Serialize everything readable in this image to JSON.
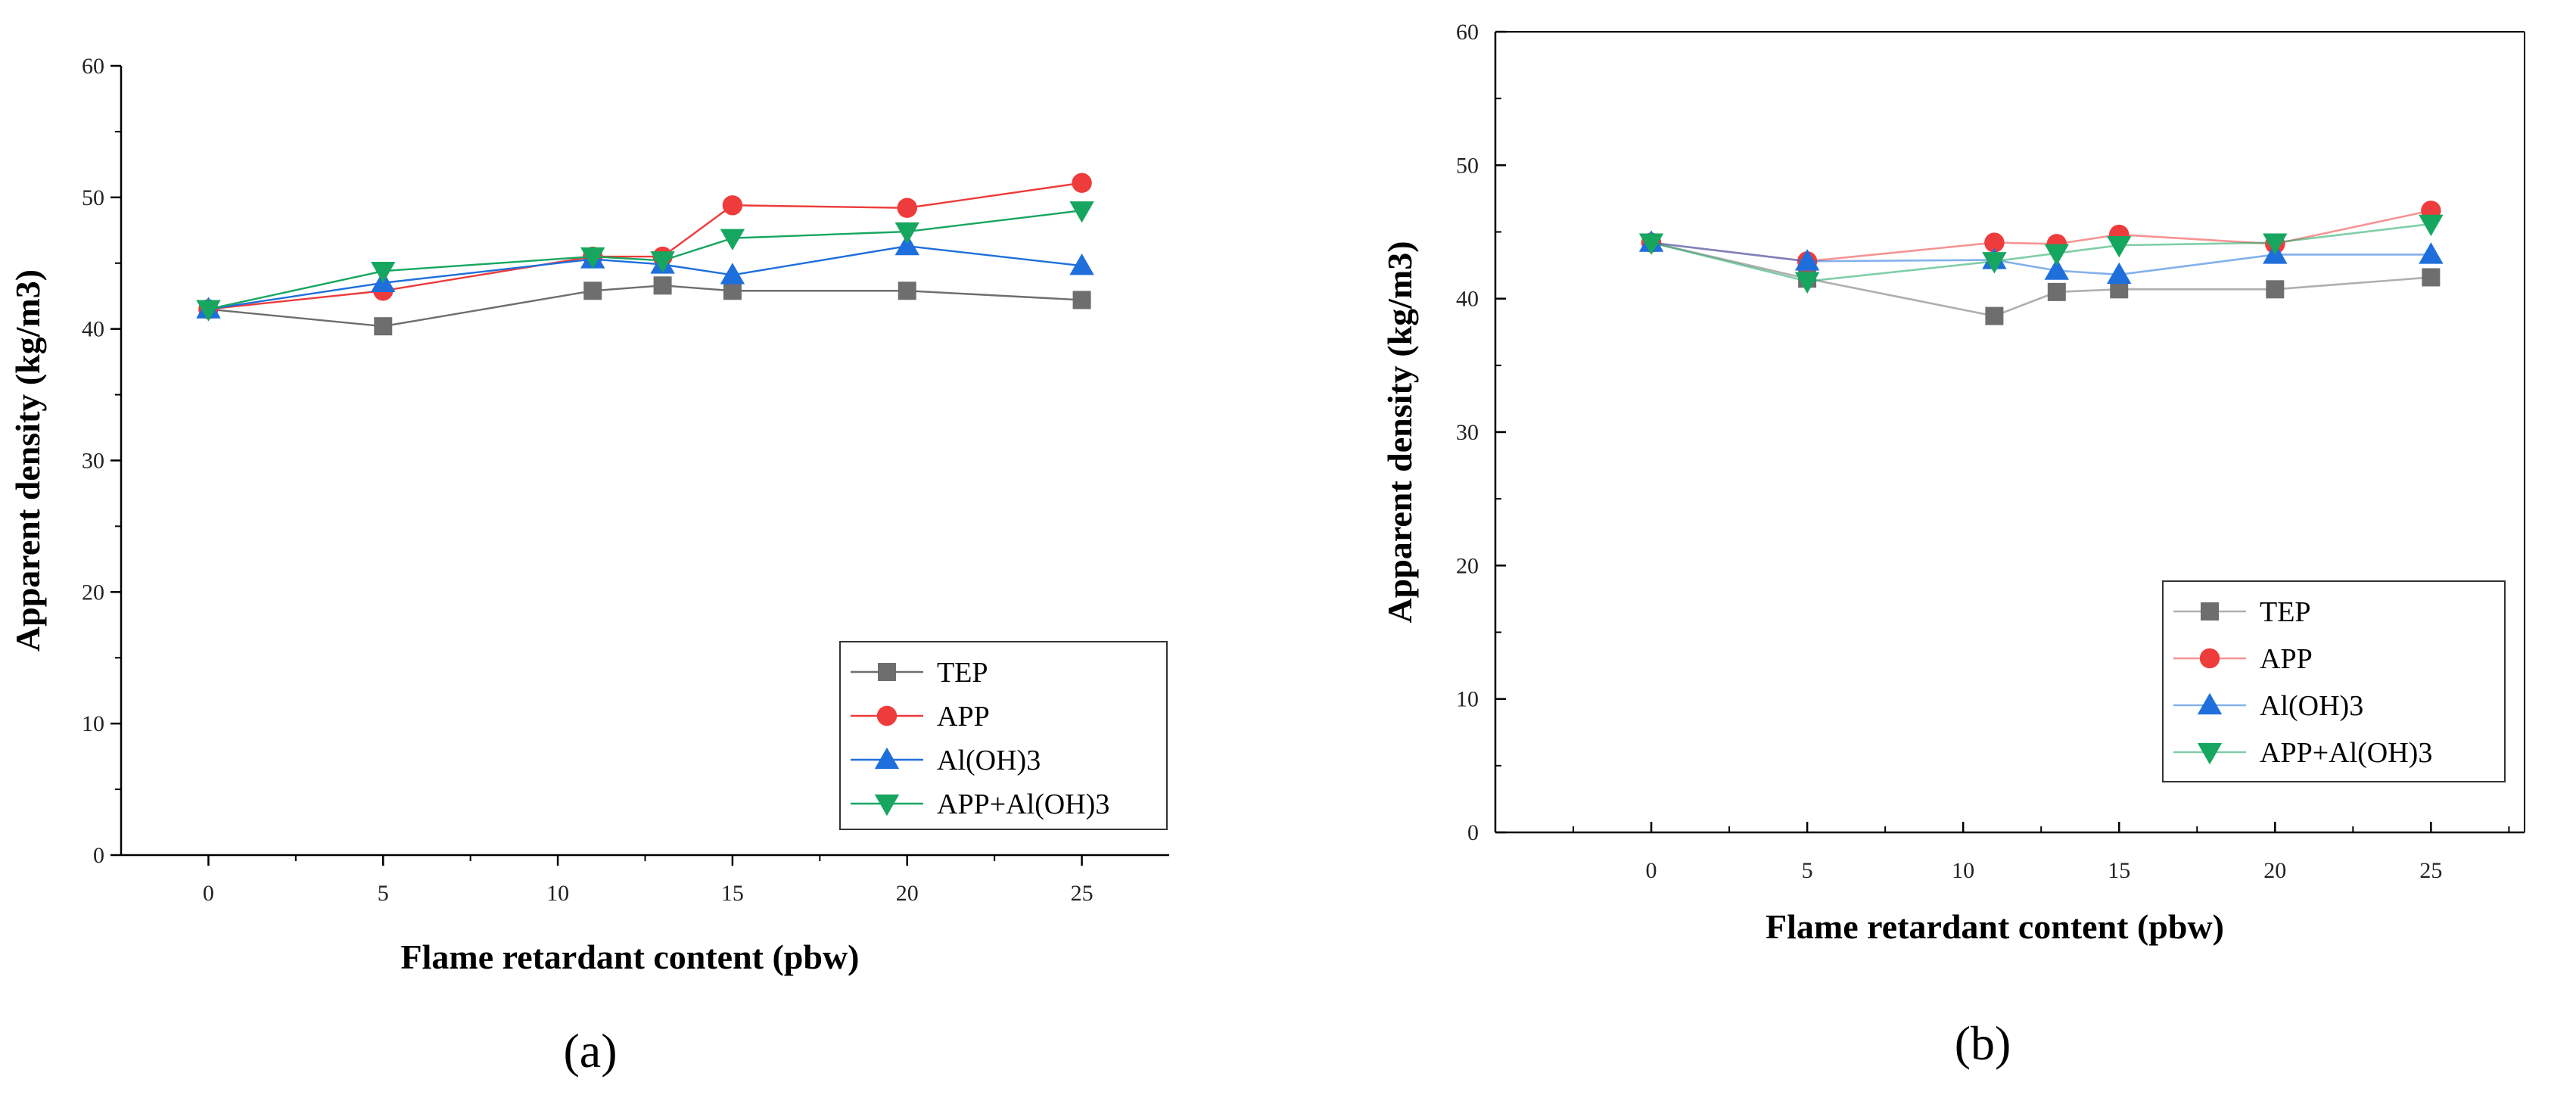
{
  "colors": {
    "TEP": "#6e6e6e",
    "APP": "#ee3b3b",
    "AlOH3": "#1e6fdc",
    "APP_AlOH3": "#16a660"
  },
  "chart_data": [
    {
      "type": "line",
      "panel_label": "(a)",
      "xlabel": "Flame retardant content (pbw)",
      "ylabel": "Apparent density (kg/m3)",
      "xlim": [
        -2.5,
        27.5
      ],
      "ylim": [
        0,
        60
      ],
      "xticks": [
        0,
        5,
        10,
        15,
        20,
        25
      ],
      "yticks": [
        0,
        10,
        20,
        30,
        40,
        50,
        60
      ],
      "legend_position": "bottom-right",
      "x": [
        0,
        5,
        11,
        13,
        15,
        20,
        25
      ],
      "series": [
        {
          "name": "TEP",
          "marker": "square",
          "values": [
            41.5,
            40.2,
            42.9,
            43.3,
            42.9,
            42.9,
            42.2
          ]
        },
        {
          "name": "APP",
          "marker": "circle",
          "values": [
            41.5,
            42.9,
            45.5,
            45.5,
            49.4,
            49.2,
            51.1
          ]
        },
        {
          "name": "Al(OH)3",
          "marker": "triangle-up",
          "values": [
            41.5,
            43.5,
            45.3,
            44.9,
            44.1,
            46.3,
            44.8
          ]
        },
        {
          "name": "APP+Al(OH)3",
          "marker": "triangle-down",
          "values": [
            41.5,
            44.4,
            45.5,
            45.2,
            46.9,
            47.4,
            49.0
          ]
        }
      ]
    },
    {
      "type": "line",
      "panel_label": "(b)",
      "xlabel": "Flame retardant content (pbw)",
      "ylabel": "Apparent density (kg/m3)",
      "xlim": [
        -5,
        28
      ],
      "ylim": [
        0,
        60
      ],
      "xticks": [
        0,
        5,
        10,
        15,
        20,
        25
      ],
      "yticks": [
        0,
        10,
        20,
        30,
        40,
        50,
        60
      ],
      "legend_position": "center-right",
      "x": [
        0,
        5,
        11,
        13,
        15,
        20,
        25
      ],
      "series": [
        {
          "name": "TEP",
          "marker": "square",
          "values": [
            44.2,
            41.5,
            38.7,
            40.5,
            40.7,
            40.7,
            41.6
          ]
        },
        {
          "name": "APP",
          "marker": "circle",
          "values": [
            44.2,
            42.8,
            44.2,
            44.1,
            44.8,
            44.1,
            46.6
          ]
        },
        {
          "name": "Al(OH)3",
          "marker": "triangle-up",
          "values": [
            44.2,
            42.8,
            42.9,
            42.1,
            41.8,
            43.3,
            43.3
          ]
        },
        {
          "name": "APP+Al(OH)3",
          "marker": "triangle-down",
          "values": [
            44.2,
            41.3,
            42.8,
            43.4,
            44.0,
            44.2,
            45.6
          ]
        }
      ]
    }
  ]
}
